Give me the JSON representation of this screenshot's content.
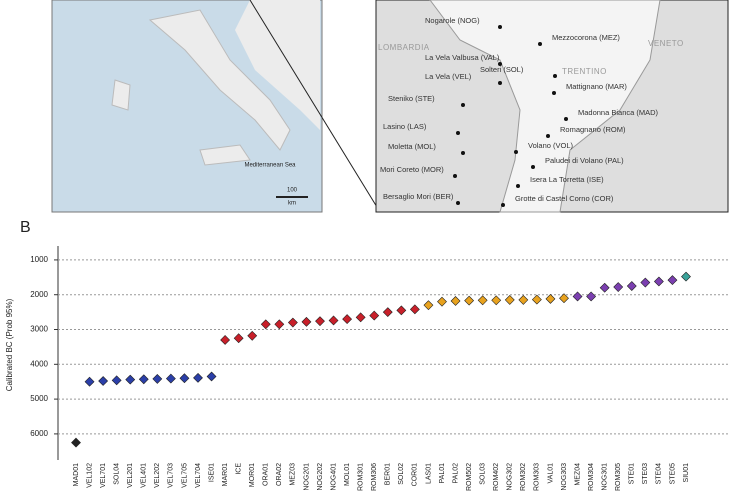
{
  "panel_label": "B",
  "map_left": {
    "labels": [
      "Mediterranean Sea",
      "100",
      "km"
    ]
  },
  "map_right": {
    "labels": [
      "Nogarole (NOG)",
      "Mezzocorona (MEZ)",
      "La Vela Valbusa (VAL)",
      "Solteri (SOL)",
      "La Vela (VEL)",
      "Mattignano (MAR)",
      "Steniko (STE)",
      "Madonna Bianca (MAD)",
      "Lasino (LAS)",
      "Romagnano (ROM)",
      "Moletta (MOL)",
      "Volano (VOL)",
      "Paludei di Volano (PAL)",
      "Mori Coreto (MOR)",
      "Isera La Torretta (ISE)",
      "Bersaglio Mori (BER)",
      "Grotte di Castel Corno (COR)"
    ],
    "regions": [
      "LOMBARDIA",
      "TRENTINO",
      "VENETO"
    ]
  },
  "chart_data": {
    "type": "scatter",
    "y_label": "Calibrated BC (Prob 95%)",
    "categories": [
      "MAD01",
      "VEL102",
      "VEL701",
      "SOL04",
      "VEL201",
      "VEL401",
      "VEL202",
      "VEL703",
      "VEL705",
      "VEL704",
      "ISE01",
      "MAR01",
      "ICE",
      "MOR01",
      "ORA01",
      "ORA02",
      "MEZ03",
      "NOG201",
      "NOG202",
      "NOG401",
      "MOL01",
      "ROM301",
      "ROM306",
      "BER01",
      "SOL02",
      "COR01",
      "LAS01",
      "PAL01",
      "PAL02",
      "ROM502",
      "SOL03",
      "ROM402",
      "NOG302",
      "ROM302",
      "ROM303",
      "VAL01",
      "NOG303",
      "MEZ04",
      "ROM304",
      "NOG301",
      "ROM305",
      "STE01",
      "STE03",
      "STE04",
      "STE05",
      "SIU01"
    ],
    "values": [
      6250,
      4500,
      4480,
      4460,
      4440,
      4430,
      4420,
      4410,
      4400,
      4390,
      4350,
      3300,
      3250,
      3180,
      2850,
      2850,
      2800,
      2780,
      2760,
      2740,
      2700,
      2650,
      2600,
      2500,
      2450,
      2420,
      2300,
      2200,
      2180,
      2170,
      2160,
      2160,
      2150,
      2150,
      2140,
      2120,
      2100,
      2050,
      2050,
      1800,
      1780,
      1750,
      1650,
      1620,
      1580,
      1480
    ],
    "colors": [
      "#222222",
      "#2b3fa8",
      "#2b3fa8",
      "#2b3fa8",
      "#2b3fa8",
      "#2b3fa8",
      "#2b3fa8",
      "#2b3fa8",
      "#2b3fa8",
      "#2b3fa8",
      "#2b3fa8",
      "#c8202a",
      "#c8202a",
      "#c8202a",
      "#c8202a",
      "#c8202a",
      "#c8202a",
      "#c8202a",
      "#c8202a",
      "#c8202a",
      "#c8202a",
      "#c8202a",
      "#c8202a",
      "#c8202a",
      "#c8202a",
      "#c8202a",
      "#e8a21e",
      "#e8a21e",
      "#e8a21e",
      "#e8a21e",
      "#e8a21e",
      "#e8a21e",
      "#e8a21e",
      "#e8a21e",
      "#e8a21e",
      "#e8a21e",
      "#e8a21e",
      "#7b3fb0",
      "#7b3fb0",
      "#7b3fb0",
      "#7b3fb0",
      "#7b3fb0",
      "#7b3fb0",
      "#7b3fb0",
      "#7b3fb0",
      "#3aa39a"
    ],
    "ylim": [
      6750,
      600
    ],
    "yticks": [
      1000,
      2000,
      3000,
      4000,
      5000,
      6000
    ],
    "grid": true
  }
}
